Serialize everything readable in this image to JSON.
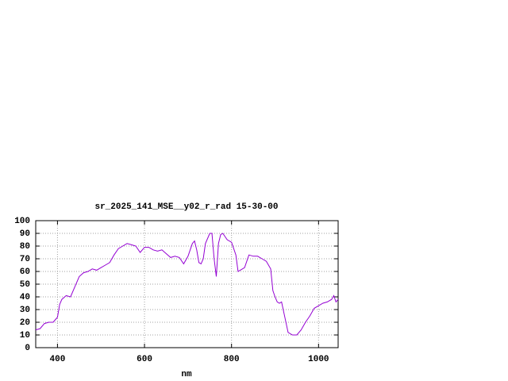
{
  "chart_data": {
    "type": "line",
    "title": "sr_2025_141_MSE__y02_r_rad 15-30-00",
    "x_label": "nm",
    "x": [
      350,
      360,
      370,
      380,
      390,
      400,
      405,
      410,
      420,
      430,
      440,
      450,
      460,
      470,
      480,
      490,
      500,
      510,
      520,
      530,
      540,
      550,
      560,
      570,
      580,
      590,
      600,
      610,
      620,
      630,
      640,
      650,
      660,
      670,
      680,
      690,
      700,
      710,
      715,
      720,
      725,
      730,
      735,
      740,
      750,
      755,
      760,
      765,
      770,
      775,
      780,
      790,
      800,
      810,
      815,
      820,
      830,
      840,
      850,
      860,
      870,
      880,
      890,
      895,
      900,
      905,
      910,
      915,
      920,
      930,
      940,
      950,
      960,
      970,
      980,
      990,
      1000,
      1010,
      1020,
      1030,
      1035,
      1040,
      1045
    ],
    "series": [
      {
        "name": "sr_2025_141_MSE__y02_r_rad 15-30-00",
        "color": "#9400d3",
        "values": [
          14,
          15,
          19,
          20,
          20,
          24,
          34,
          38,
          41,
          40,
          48,
          56,
          59,
          60,
          62,
          61,
          63,
          65,
          67,
          73,
          78,
          80,
          82,
          81,
          80,
          75,
          79,
          79,
          77,
          76,
          77,
          74,
          71,
          72,
          71,
          66,
          72,
          82,
          84,
          77,
          67,
          66,
          70,
          82,
          90,
          90,
          70,
          56,
          82,
          89,
          90,
          85,
          83,
          73,
          60,
          61,
          63,
          73,
          72,
          72,
          70,
          68,
          62,
          45,
          40,
          36,
          35,
          36,
          28,
          12,
          10,
          10,
          14,
          20,
          25,
          31,
          33,
          35,
          36,
          38,
          41,
          36,
          38
        ]
      }
    ],
    "xlim": [
      350,
      1045
    ],
    "ylim": [
      0,
      100
    ],
    "xticks": [
      400,
      600,
      800,
      1000
    ],
    "yticks": [
      0,
      10,
      20,
      30,
      40,
      50,
      60,
      70,
      80,
      90,
      100
    ],
    "grid": true
  }
}
